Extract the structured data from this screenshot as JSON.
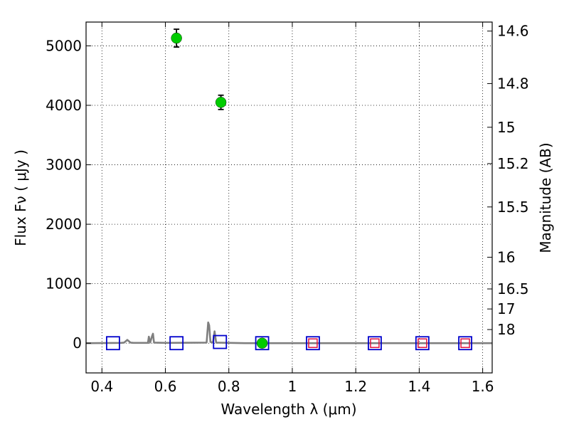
{
  "chart_data": {
    "type": "scatter",
    "xlabel": "Wavelength  λ (μm)",
    "ylabel": "Flux  Fν  ( μJy )",
    "ylabel_right": "Magnitude (AB)",
    "xlim": [
      0.35,
      1.63
    ],
    "ylim": [
      -500,
      5400
    ],
    "grid": true,
    "x_ticks": [
      0.4,
      0.6,
      0.8,
      1.0,
      1.2,
      1.4,
      1.6
    ],
    "x_tick_labels": [
      "0.4",
      "0.6",
      "0.8",
      "1",
      "1.2",
      "1.4",
      "1.6"
    ],
    "y_ticks": [
      0,
      1000,
      2000,
      3000,
      4000,
      5000
    ],
    "y_tick_labels": [
      "0",
      "1000",
      "2000",
      "3000",
      "4000",
      "5000"
    ],
    "mag_ticks": [
      14.6,
      14.8,
      15,
      15.2,
      15.5,
      16,
      16.5,
      17,
      18
    ],
    "mag_tick_labels": [
      "14.6",
      "14.8",
      "15",
      "15.2",
      "15.5",
      "16",
      "16.5",
      "17",
      "18"
    ],
    "colors": {
      "observed": "#00cc00",
      "model_box": "#0000cc",
      "nir_box": "#e01040",
      "spectrum": "#7f7f7f",
      "errorbar": "#000000"
    },
    "series": [
      {
        "kind": "observed_points",
        "x": [
          0.635,
          0.775,
          0.905
        ],
        "y": [
          5130,
          4050,
          0
        ],
        "yerr": [
          150,
          120,
          0
        ]
      },
      {
        "kind": "model_boxes",
        "x": [
          0.435,
          0.635,
          0.772,
          0.905,
          1.065,
          1.26,
          1.41,
          1.545
        ],
        "y": [
          0,
          0,
          20,
          0,
          0,
          0,
          0,
          0
        ]
      },
      {
        "kind": "inner_boxes",
        "x": [
          1.065,
          1.26,
          1.41,
          1.545
        ],
        "y": [
          0,
          0,
          0,
          0
        ]
      },
      {
        "kind": "spectrum",
        "x": [
          0.35,
          0.46,
          0.47,
          0.48,
          0.49,
          0.5,
          0.545,
          0.548,
          0.552,
          0.558,
          0.561,
          0.564,
          0.6,
          0.73,
          0.735,
          0.738,
          0.742,
          0.75,
          0.755,
          0.76,
          0.85,
          1.0,
          1.2,
          1.4,
          1.63
        ],
        "y": [
          0,
          5,
          10,
          55,
          10,
          5,
          5,
          110,
          10,
          120,
          160,
          10,
          5,
          10,
          350,
          300,
          20,
          10,
          200,
          10,
          0,
          0,
          0,
          0,
          0
        ]
      }
    ]
  }
}
